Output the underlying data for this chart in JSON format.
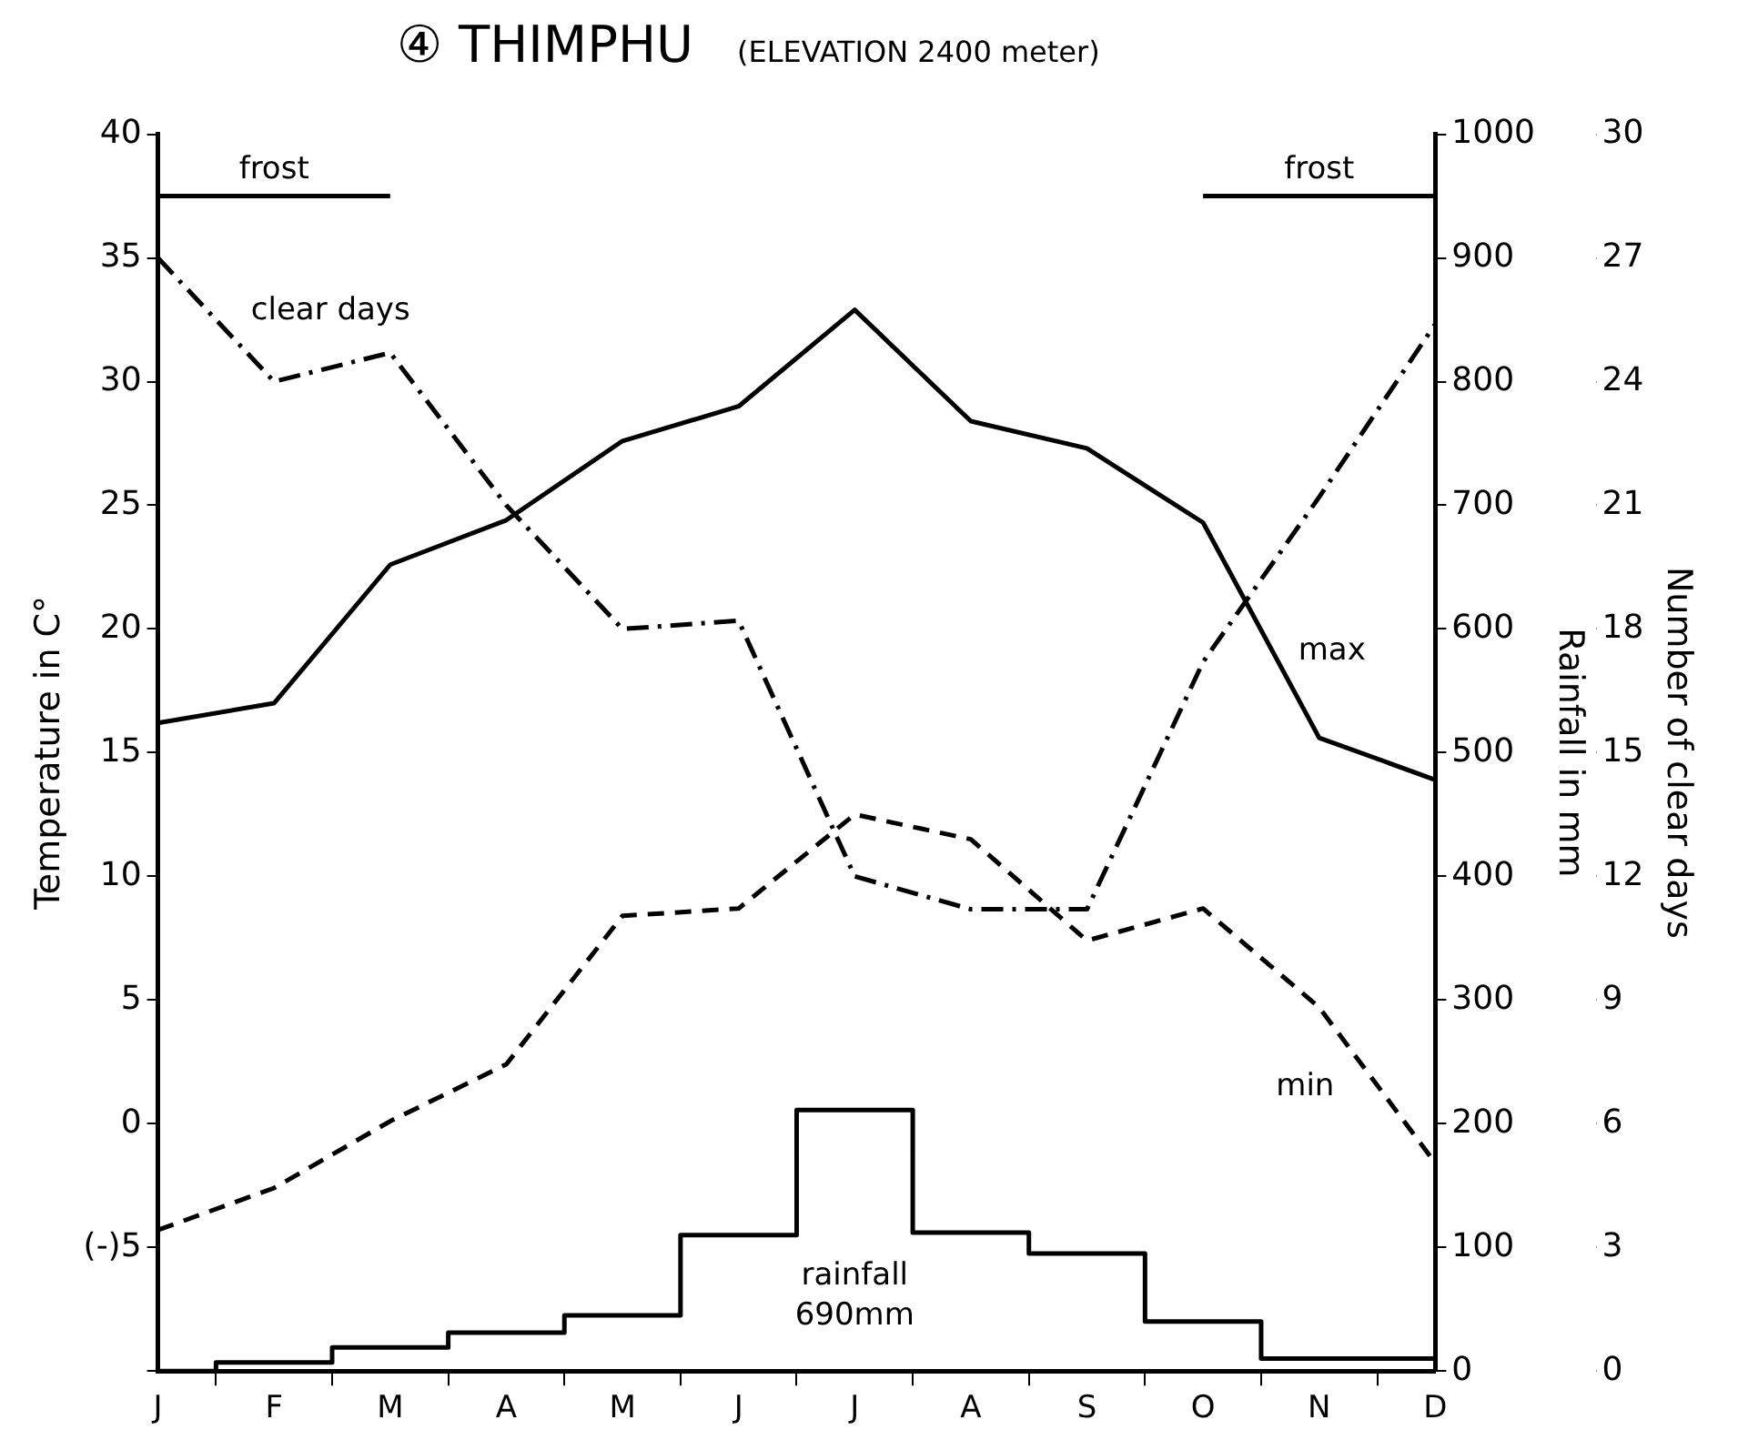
{
  "chart_data": {
    "type": "line",
    "title": "④ THIMPHU",
    "subtitle": "(ELEVATION 2400 meter)",
    "ylabel": "Temperature in C°",
    "y2label": "Rainfall in mm",
    "y3label": "Number of clear days",
    "categories": [
      "J",
      "F",
      "M",
      "A",
      "M",
      "J",
      "J",
      "A",
      "S",
      "O",
      "N",
      "D"
    ],
    "series": [
      {
        "name": "max",
        "color": "#000000",
        "line_style": "solid",
        "values": [
          16.2,
          17.0,
          22.6,
          24.4,
          27.6,
          29.0,
          32.9,
          28.4,
          27.3,
          24.3,
          15.6,
          13.9
        ]
      },
      {
        "name": "min",
        "color": "#000000",
        "line_style": "dashed",
        "values": [
          -4.3,
          -2.6,
          0.1,
          2.4,
          8.4,
          8.7,
          12.5,
          11.5,
          7.4,
          8.7,
          4.7,
          -1.6
        ]
      },
      {
        "name": "clear days",
        "color": "#000000",
        "line_style": "dashdot",
        "axis": "y3",
        "values": [
          27.0,
          24.0,
          24.7,
          21.0,
          18.0,
          18.2,
          12.0,
          11.2,
          11.2,
          17.2,
          21.2,
          25.4
        ]
      },
      {
        "type": "step",
        "color": "#000000",
        "line_style": "solid",
        "axis": "y2",
        "values": [
          0,
          7,
          19,
          31,
          45,
          110,
          211,
          112,
          95,
          40,
          10,
          10
        ]
      },
      {
        "name": "frost",
        "color": "#000000",
        "line_style": "solid",
        "values": [
          37.5,
          37.5,
          37.5,
          null,
          null,
          null,
          null,
          null,
          null,
          null,
          null,
          null
        ]
      },
      {
        "name": "frost",
        "color": "#000000",
        "line_style": "solid",
        "values": [
          null,
          null,
          null,
          null,
          null,
          null,
          null,
          null,
          null,
          37.5,
          37.5,
          37.5
        ]
      }
    ],
    "ylim": [
      -10,
      40
    ],
    "yticks": [
      {
        "value": -10,
        "label": null
      },
      {
        "value": -5,
        "label": "(-)5"
      },
      0,
      5,
      10,
      15,
      20,
      25,
      30,
      35,
      40
    ],
    "y2lim": [
      0,
      1000
    ],
    "y2ticks": [
      0,
      100,
      200,
      300,
      400,
      500,
      600,
      700,
      800,
      900,
      1000
    ],
    "y3lim": [
      0,
      30
    ],
    "y3ticks": [
      0,
      3,
      6,
      9,
      12,
      15,
      18,
      21,
      24,
      27,
      30
    ],
    "annotations": [
      "rainfall 690mm"
    ],
    "grid": false,
    "legend": false,
    "marker": "none"
  }
}
